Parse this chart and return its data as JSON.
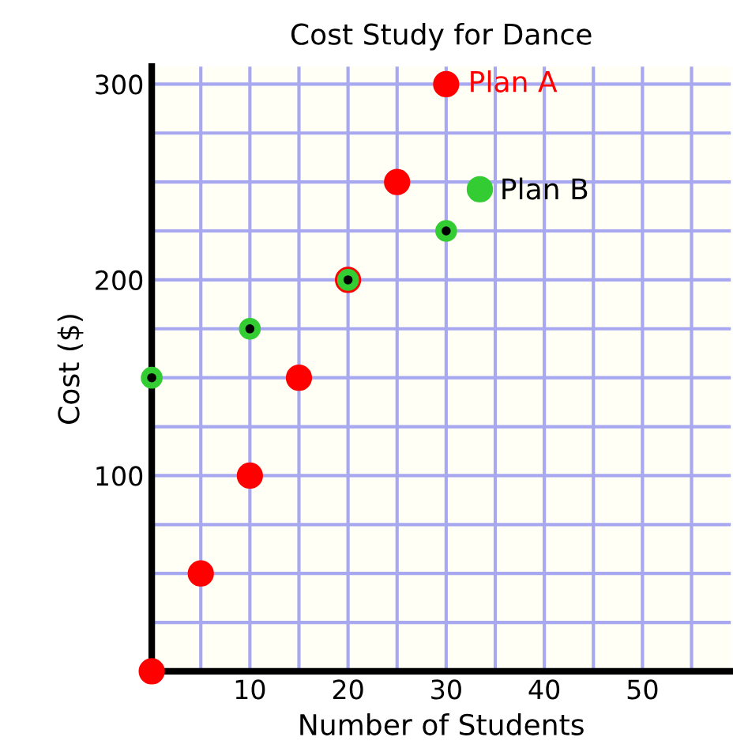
{
  "chart_data": {
    "type": "scatter",
    "title": "Cost Study for Dance",
    "xlabel": "Number of Students",
    "ylabel": "Cost ($)",
    "series": [
      {
        "name": "Plan A",
        "color": "#ff0000",
        "x": [
          0,
          5,
          10,
          15,
          20,
          25,
          30
        ],
        "values": [
          0,
          50,
          100,
          150,
          200,
          250,
          300
        ]
      },
      {
        "name": "Plan B",
        "color": "#33cc33",
        "x": [
          0,
          10,
          20,
          30
        ],
        "values": [
          150,
          175,
          200,
          225
        ]
      }
    ],
    "xlim": [
      0,
      59
    ],
    "ylim": [
      0,
      309
    ],
    "xticks": [
      {
        "value": 5,
        "label": null
      },
      10,
      {
        "value": 15,
        "label": null
      },
      20,
      {
        "value": 25,
        "label": null
      },
      30,
      {
        "value": 35,
        "label": null
      },
      40,
      {
        "value": 45,
        "label": null
      },
      50,
      {
        "value": 55,
        "label": null
      }
    ],
    "yticks": [
      {
        "value": 25,
        "label": null
      },
      {
        "value": 50,
        "label": null
      },
      {
        "value": 75,
        "label": null
      },
      100,
      {
        "value": 125,
        "label": null
      },
      {
        "value": 150,
        "label": null
      },
      {
        "value": 175,
        "label": null
      },
      200,
      {
        "value": 225,
        "label": null
      },
      {
        "value": 250,
        "label": null
      },
      {
        "value": 275,
        "label": null
      },
      300
    ],
    "grid": true,
    "legend": "top right",
    "marker": "circle"
  }
}
